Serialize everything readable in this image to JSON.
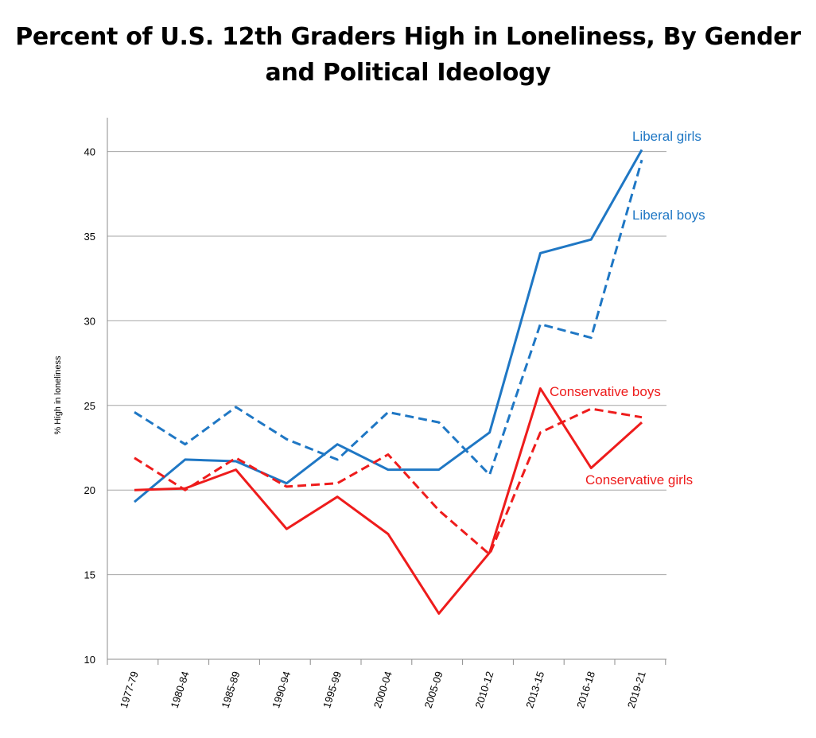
{
  "chart_data": {
    "type": "line",
    "title": "Percent of U.S. 12th Graders High in Loneliness, By Gender and Political Ideology",
    "xlabel": "",
    "ylabel": "% High in loneliness",
    "ylim": [
      10,
      42
    ],
    "yticks": [
      10,
      15,
      20,
      25,
      30,
      35,
      40
    ],
    "grid": true,
    "categories": [
      "1977-79",
      "1980-84",
      "1985-89",
      "1990-94",
      "1995-99",
      "2000-04",
      "2005-09",
      "2010-12",
      "2013-15",
      "2016-18",
      "2019-21"
    ],
    "series": [
      {
        "name": "Liberal girls",
        "color": "#1f77c4",
        "dash": "solid",
        "values": [
          19.3,
          21.8,
          21.7,
          20.4,
          22.7,
          21.2,
          21.2,
          23.4,
          34.0,
          34.8,
          40.1
        ]
      },
      {
        "name": "Liberal boys",
        "color": "#1f77c4",
        "dash": "dashed",
        "values": [
          24.6,
          22.7,
          24.9,
          23.0,
          21.8,
          24.6,
          24.0,
          20.9,
          29.8,
          29.0,
          39.5
        ]
      },
      {
        "name": "Conservative boys",
        "color": "#ee1c1c",
        "dash": "dashed",
        "values": [
          21.9,
          20.0,
          21.9,
          20.2,
          20.4,
          22.1,
          18.8,
          16.2,
          23.4,
          24.8,
          24.3
        ]
      },
      {
        "name": "Conservative girls",
        "color": "#ee1c1c",
        "dash": "solid",
        "values": [
          20.0,
          20.1,
          21.2,
          17.7,
          19.6,
          17.4,
          12.7,
          16.3,
          26.0,
          21.3,
          24.0
        ]
      }
    ],
    "annotations": [
      {
        "text": "Liberal girls",
        "series": "Liberal girls",
        "position": "top-right"
      },
      {
        "text": "Liberal boys",
        "series": "Liberal boys",
        "position": "right"
      },
      {
        "text": "Conservative boys",
        "series": "Conservative boys",
        "position": "right"
      },
      {
        "text": "Conservative girls",
        "series": "Conservative girls",
        "position": "right"
      }
    ]
  }
}
